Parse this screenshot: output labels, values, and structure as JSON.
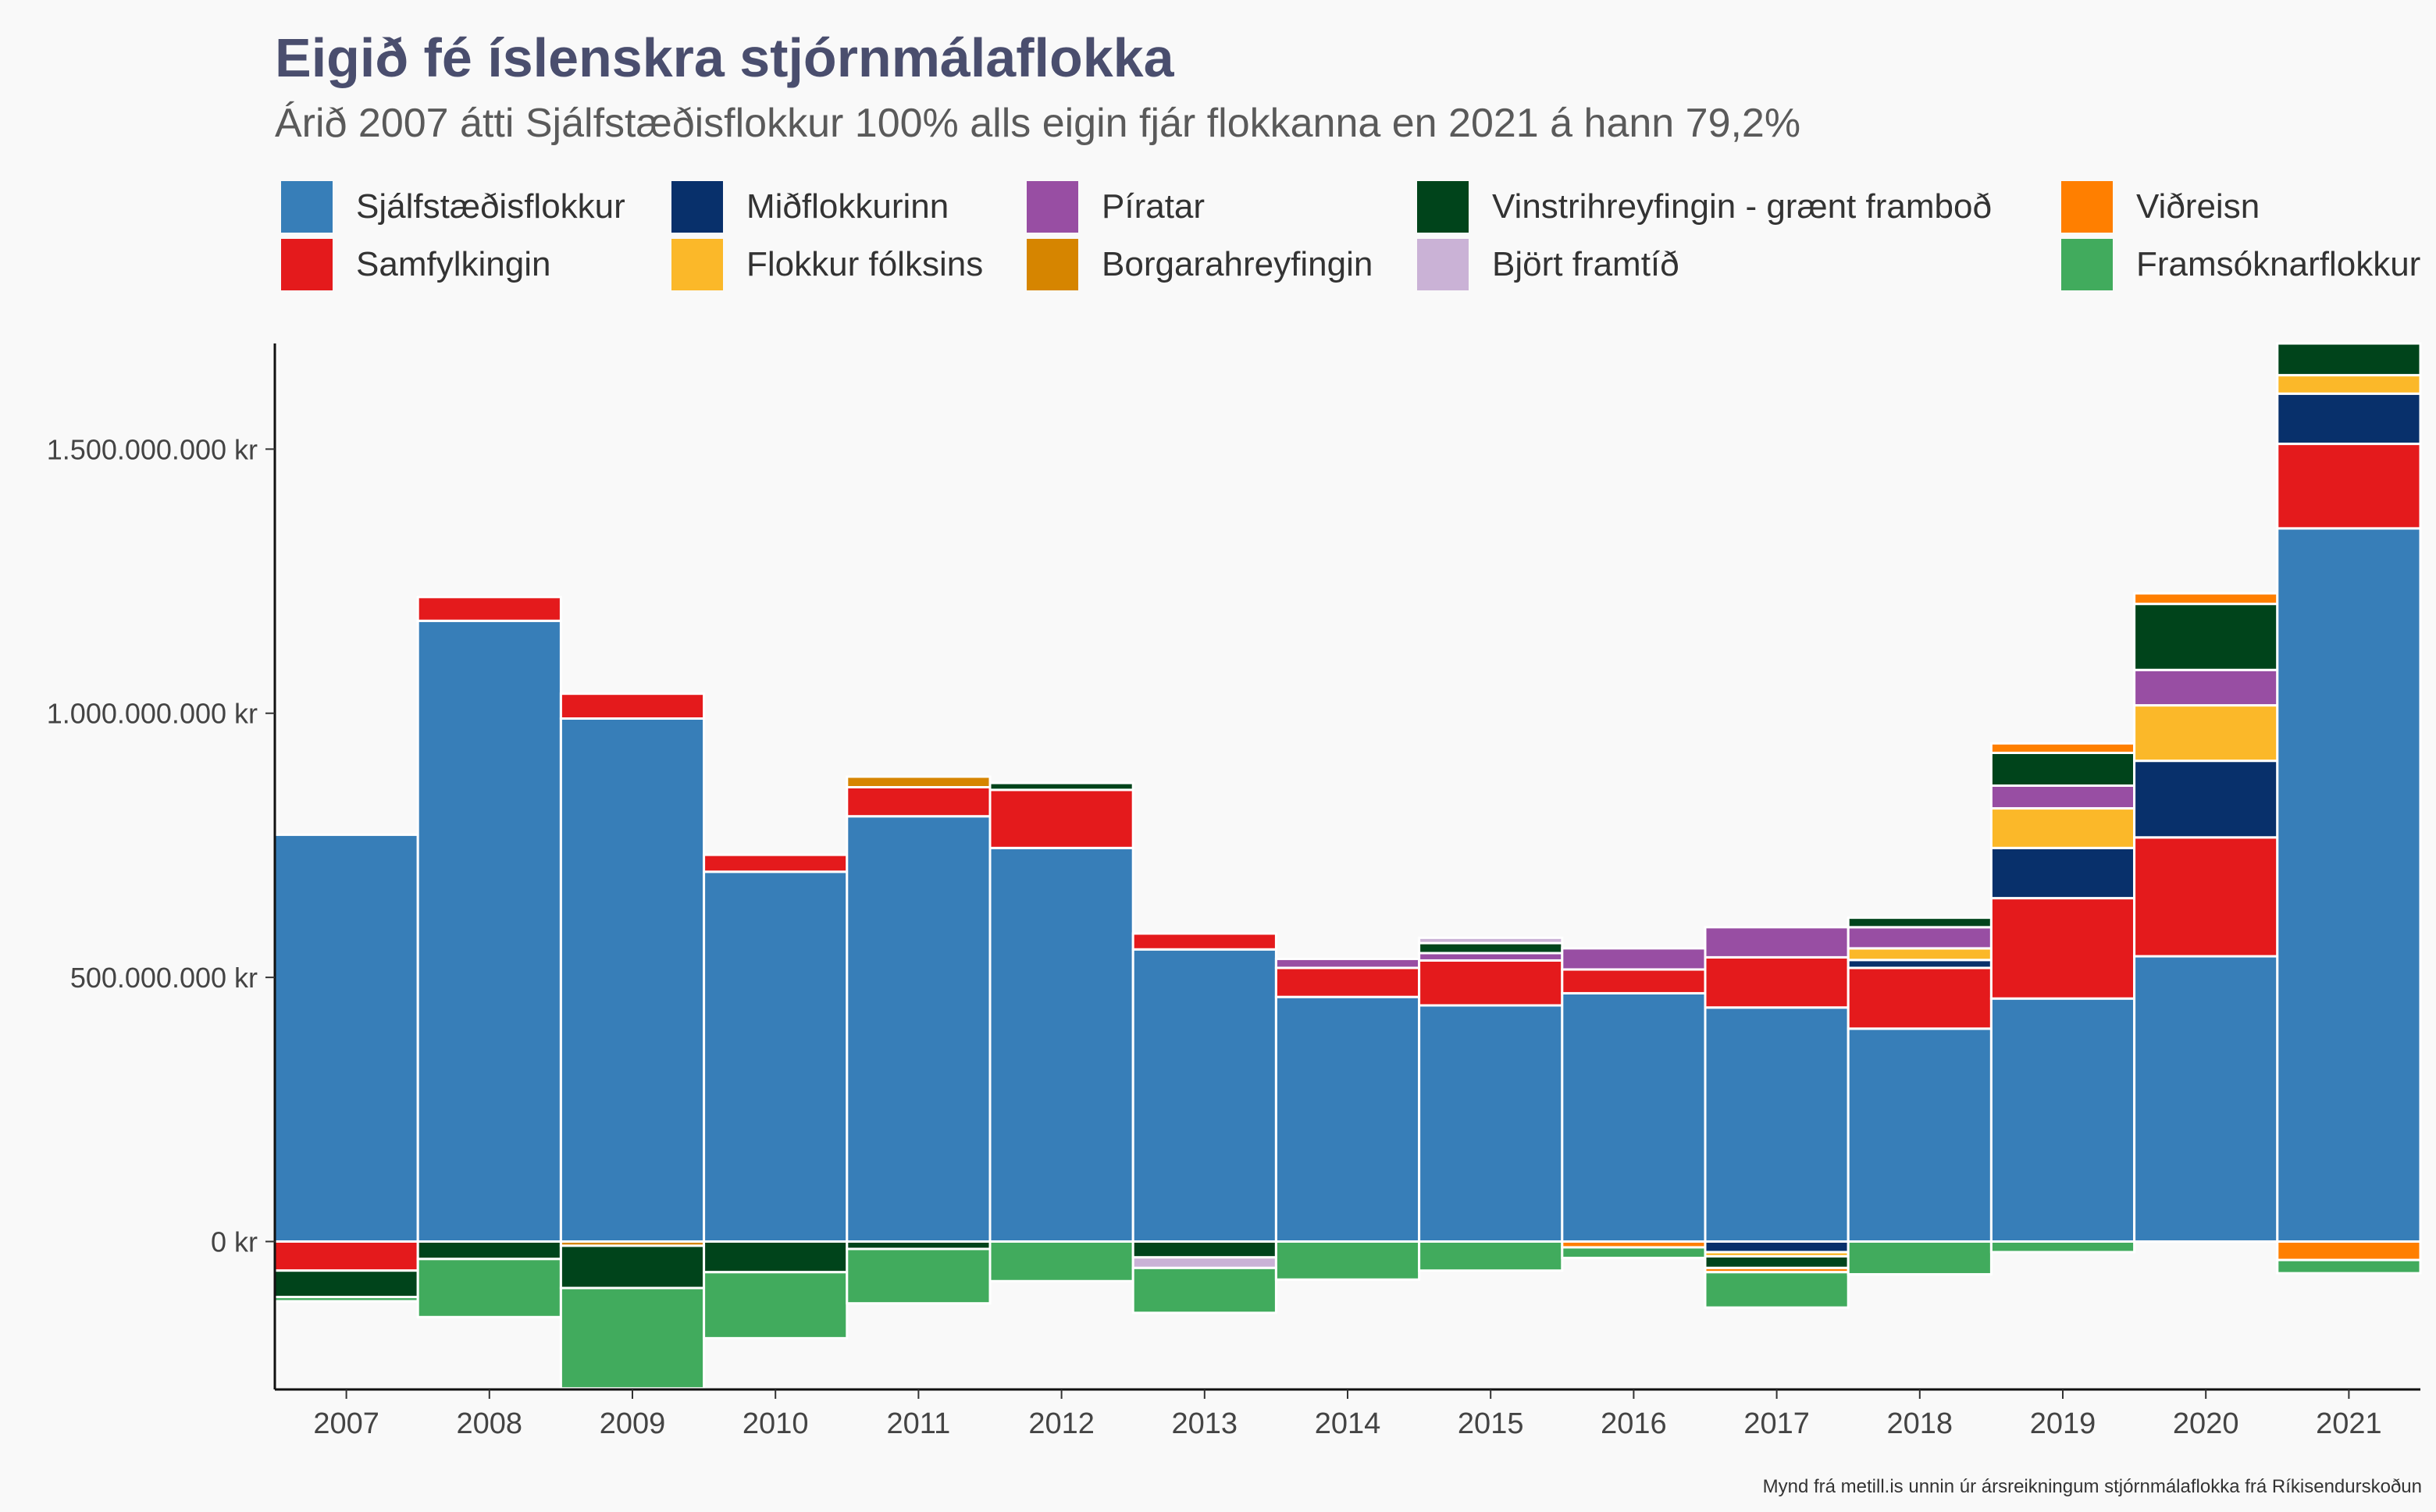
{
  "chart_data": {
    "type": "bar",
    "title": "Eigið fé íslenskra stjórnmálaflokka",
    "subtitle": "Árið 2007 átti Sjálfstæðisflokkur 100% alls eigin fjár flokkanna en 2021 á hann 79,2%",
    "caption": "Mynd frá metill.is unnin úr ársreikningum stjórnmálaflokka frá Ríkisendurskoðun",
    "xlabel": "",
    "ylabel": "",
    "ylim": [
      -280000000,
      1700000000
    ],
    "y_ticks": [
      0,
      500000000,
      1000000000,
      1500000000
    ],
    "y_tick_labels": [
      "0 kr",
      "500.000.000 kr",
      "1.000.000.000 kr",
      "1.500.000.000 kr"
    ],
    "grid": false,
    "legend_position": "top",
    "categories": [
      "2007",
      "2008",
      "2009",
      "2010",
      "2011",
      "2012",
      "2013",
      "2014",
      "2015",
      "2016",
      "2017",
      "2018",
      "2019",
      "2020",
      "2021"
    ],
    "series": [
      {
        "name": "Sjálfstæðisflokkur",
        "color": "#377eb8",
        "values": [
          770000000,
          1175000000,
          990000000,
          700000000,
          805000000,
          745000000,
          553000000,
          463000000,
          447000000,
          470000000,
          443000000,
          403000000,
          460000000,
          540000000,
          1350000000
        ]
      },
      {
        "name": "Samfylkingin",
        "color": "#e41a1c",
        "values": [
          -55000000,
          45000000,
          47000000,
          32000000,
          55000000,
          110000000,
          30000000,
          55000000,
          85000000,
          45000000,
          95000000,
          115000000,
          190000000,
          225000000,
          160000000
        ]
      },
      {
        "name": "Miðflokkurinn",
        "color": "#08306b",
        "values": [
          0,
          0,
          0,
          0,
          0,
          0,
          0,
          0,
          0,
          0,
          -20000000,
          15000000,
          95000000,
          145000000,
          95000000
        ]
      },
      {
        "name": "Flokkur fólksins",
        "color": "#fbb829",
        "values": [
          0,
          0,
          0,
          0,
          0,
          0,
          0,
          0,
          0,
          0,
          -8000000,
          22000000,
          75000000,
          105000000,
          35000000
        ]
      },
      {
        "name": "Píratar",
        "color": "#984ea3",
        "values": [
          0,
          0,
          0,
          0,
          0,
          0,
          0,
          17000000,
          14000000,
          40000000,
          57000000,
          40000000,
          43000000,
          67000000,
          0
        ]
      },
      {
        "name": "Borgarahreyfingin",
        "color": "#d68500",
        "values": [
          0,
          0,
          -8000000,
          0,
          20000000,
          0,
          0,
          0,
          0,
          0,
          0,
          0,
          0,
          0,
          0
        ]
      },
      {
        "name": "Vinstrihreyfingin - grænt framboð",
        "color": "#00441b",
        "values": [
          -50000000,
          -33000000,
          -80000000,
          -58000000,
          -14000000,
          13000000,
          -30000000,
          0,
          19000000,
          0,
          -22000000,
          18000000,
          62000000,
          125000000,
          60000000
        ]
      },
      {
        "name": "Björt framtíð",
        "color": "#cab2d6",
        "values": [
          0,
          0,
          0,
          0,
          0,
          0,
          -20000000,
          0,
          10000000,
          0,
          0,
          0,
          0,
          0,
          0
        ]
      },
      {
        "name": "Viðreisn",
        "color": "#ff7f00",
        "values": [
          0,
          0,
          0,
          0,
          0,
          0,
          0,
          0,
          0,
          -11000000,
          -8000000,
          0,
          18000000,
          20000000,
          -35000000
        ]
      },
      {
        "name": "Framsóknarflokkur",
        "color": "#41ab5d",
        "values": [
          -8000000,
          -110000000,
          -190000000,
          -125000000,
          -103000000,
          -75000000,
          -85000000,
          -72000000,
          -55000000,
          -20000000,
          -67000000,
          -62000000,
          -20000000,
          0,
          -25000000
        ]
      }
    ]
  }
}
